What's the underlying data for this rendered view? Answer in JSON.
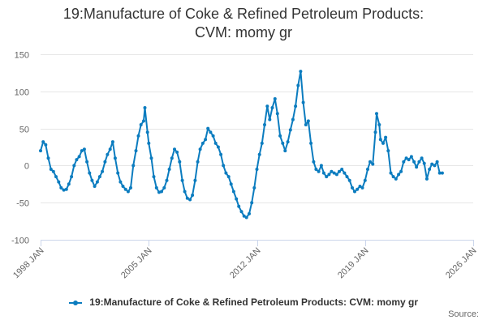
{
  "title_line1": "19:Manufacture of Coke & Refined Petroleum Products:",
  "title_line2": "CVM: momy gr",
  "source_label": "Source:",
  "colors": {
    "series": "#0b7cbf",
    "grid": "#e6e6e6",
    "axis": "#ccd6eb",
    "text": "#666666"
  },
  "chart_data": {
    "type": "line",
    "title": "19:Manufacture of Coke & Refined Petroleum Products: CVM: momy gr",
    "xlabel": "",
    "ylabel": "",
    "xlim": [
      1998.0,
      2026.0
    ],
    "ylim": [
      -100,
      150
    ],
    "yticks": [
      -100,
      -50,
      0,
      50,
      100,
      150
    ],
    "xticks": [
      {
        "value": 1998.0,
        "label": "1998 JAN"
      },
      {
        "value": 2005.0,
        "label": "2005 JAN"
      },
      {
        "value": 2012.0,
        "label": "2012 JAN"
      },
      {
        "value": 2019.0,
        "label": "2019 JAN"
      },
      {
        "value": 2026.0,
        "label": "2026 JAN"
      }
    ],
    "legend_position": "bottom",
    "series": [
      {
        "name": "19:Manufacture of Coke & Refined Petroleum Products: CVM: momy gr",
        "points": [
          [
            1998.0,
            20
          ],
          [
            1998.17,
            32
          ],
          [
            1998.33,
            28
          ],
          [
            1998.5,
            10
          ],
          [
            1998.67,
            -5
          ],
          [
            1998.83,
            -8
          ],
          [
            1999.0,
            -15
          ],
          [
            1999.17,
            -22
          ],
          [
            1999.33,
            -30
          ],
          [
            1999.5,
            -33
          ],
          [
            1999.67,
            -32
          ],
          [
            1999.83,
            -25
          ],
          [
            2000.0,
            -15
          ],
          [
            2000.17,
            0
          ],
          [
            2000.33,
            8
          ],
          [
            2000.5,
            12
          ],
          [
            2000.67,
            20
          ],
          [
            2000.83,
            22
          ],
          [
            2001.0,
            5
          ],
          [
            2001.17,
            -10
          ],
          [
            2001.33,
            -20
          ],
          [
            2001.5,
            -28
          ],
          [
            2001.67,
            -22
          ],
          [
            2001.83,
            -15
          ],
          [
            2002.0,
            -8
          ],
          [
            2002.17,
            5
          ],
          [
            2002.33,
            15
          ],
          [
            2002.5,
            22
          ],
          [
            2002.67,
            32
          ],
          [
            2002.83,
            10
          ],
          [
            2003.0,
            -10
          ],
          [
            2003.17,
            -22
          ],
          [
            2003.33,
            -28
          ],
          [
            2003.5,
            -32
          ],
          [
            2003.67,
            -35
          ],
          [
            2003.83,
            -30
          ],
          [
            2004.0,
            0
          ],
          [
            2004.17,
            20
          ],
          [
            2004.33,
            40
          ],
          [
            2004.5,
            55
          ],
          [
            2004.67,
            60
          ],
          [
            2004.75,
            78
          ],
          [
            2004.92,
            45
          ],
          [
            2005.0,
            30
          ],
          [
            2005.17,
            10
          ],
          [
            2005.33,
            -15
          ],
          [
            2005.5,
            -30
          ],
          [
            2005.67,
            -36
          ],
          [
            2005.83,
            -35
          ],
          [
            2006.0,
            -30
          ],
          [
            2006.17,
            -20
          ],
          [
            2006.33,
            -5
          ],
          [
            2006.5,
            10
          ],
          [
            2006.67,
            22
          ],
          [
            2006.83,
            18
          ],
          [
            2007.0,
            5
          ],
          [
            2007.17,
            -20
          ],
          [
            2007.33,
            -35
          ],
          [
            2007.5,
            -44
          ],
          [
            2007.67,
            -46
          ],
          [
            2007.83,
            -40
          ],
          [
            2008.0,
            -20
          ],
          [
            2008.17,
            5
          ],
          [
            2008.33,
            22
          ],
          [
            2008.5,
            30
          ],
          [
            2008.67,
            35
          ],
          [
            2008.83,
            50
          ],
          [
            2009.0,
            45
          ],
          [
            2009.17,
            40
          ],
          [
            2009.33,
            30
          ],
          [
            2009.5,
            25
          ],
          [
            2009.67,
            15
          ],
          [
            2009.83,
            0
          ],
          [
            2010.0,
            -10
          ],
          [
            2010.17,
            -15
          ],
          [
            2010.33,
            -25
          ],
          [
            2010.5,
            -35
          ],
          [
            2010.67,
            -45
          ],
          [
            2010.83,
            -55
          ],
          [
            2011.0,
            -62
          ],
          [
            2011.17,
            -68
          ],
          [
            2011.33,
            -70
          ],
          [
            2011.5,
            -65
          ],
          [
            2011.67,
            -50
          ],
          [
            2011.83,
            -30
          ],
          [
            2012.0,
            -5
          ],
          [
            2012.17,
            15
          ],
          [
            2012.33,
            30
          ],
          [
            2012.5,
            55
          ],
          [
            2012.67,
            80
          ],
          [
            2012.83,
            62
          ],
          [
            2013.0,
            78
          ],
          [
            2013.17,
            90
          ],
          [
            2013.33,
            70
          ],
          [
            2013.5,
            40
          ],
          [
            2013.67,
            30
          ],
          [
            2013.83,
            20
          ],
          [
            2014.0,
            32
          ],
          [
            2014.17,
            48
          ],
          [
            2014.33,
            62
          ],
          [
            2014.5,
            80
          ],
          [
            2014.67,
            108
          ],
          [
            2014.83,
            127
          ],
          [
            2015.0,
            85
          ],
          [
            2015.17,
            55
          ],
          [
            2015.33,
            60
          ],
          [
            2015.5,
            30
          ],
          [
            2015.67,
            5
          ],
          [
            2015.83,
            -5
          ],
          [
            2016.0,
            -8
          ],
          [
            2016.17,
            0
          ],
          [
            2016.33,
            -10
          ],
          [
            2016.5,
            -15
          ],
          [
            2016.67,
            -12
          ],
          [
            2016.83,
            -8
          ],
          [
            2017.0,
            -10
          ],
          [
            2017.17,
            -12
          ],
          [
            2017.33,
            -8
          ],
          [
            2017.5,
            -5
          ],
          [
            2017.67,
            -10
          ],
          [
            2017.83,
            -15
          ],
          [
            2018.0,
            -20
          ],
          [
            2018.17,
            -30
          ],
          [
            2018.33,
            -35
          ],
          [
            2018.5,
            -32
          ],
          [
            2018.67,
            -28
          ],
          [
            2018.83,
            -30
          ],
          [
            2019.0,
            -20
          ],
          [
            2019.17,
            -5
          ],
          [
            2019.33,
            5
          ],
          [
            2019.5,
            2
          ],
          [
            2019.67,
            45
          ],
          [
            2019.75,
            70
          ],
          [
            2019.92,
            55
          ],
          [
            2020.0,
            35
          ],
          [
            2020.17,
            30
          ],
          [
            2020.33,
            38
          ],
          [
            2020.5,
            20
          ],
          [
            2020.67,
            -10
          ],
          [
            2020.83,
            -15
          ],
          [
            2021.0,
            -18
          ],
          [
            2021.17,
            -12
          ],
          [
            2021.33,
            -8
          ],
          [
            2021.5,
            5
          ],
          [
            2021.67,
            10
          ],
          [
            2021.83,
            8
          ],
          [
            2022.0,
            12
          ],
          [
            2022.17,
            5
          ],
          [
            2022.33,
            -2
          ],
          [
            2022.5,
            5
          ],
          [
            2022.67,
            10
          ],
          [
            2022.83,
            3
          ],
          [
            2023.0,
            -18
          ],
          [
            2023.17,
            -5
          ],
          [
            2023.33,
            2
          ],
          [
            2023.5,
            0
          ],
          [
            2023.67,
            5
          ],
          [
            2023.83,
            -10
          ],
          [
            2024.0,
            -10
          ]
        ]
      }
    ]
  }
}
